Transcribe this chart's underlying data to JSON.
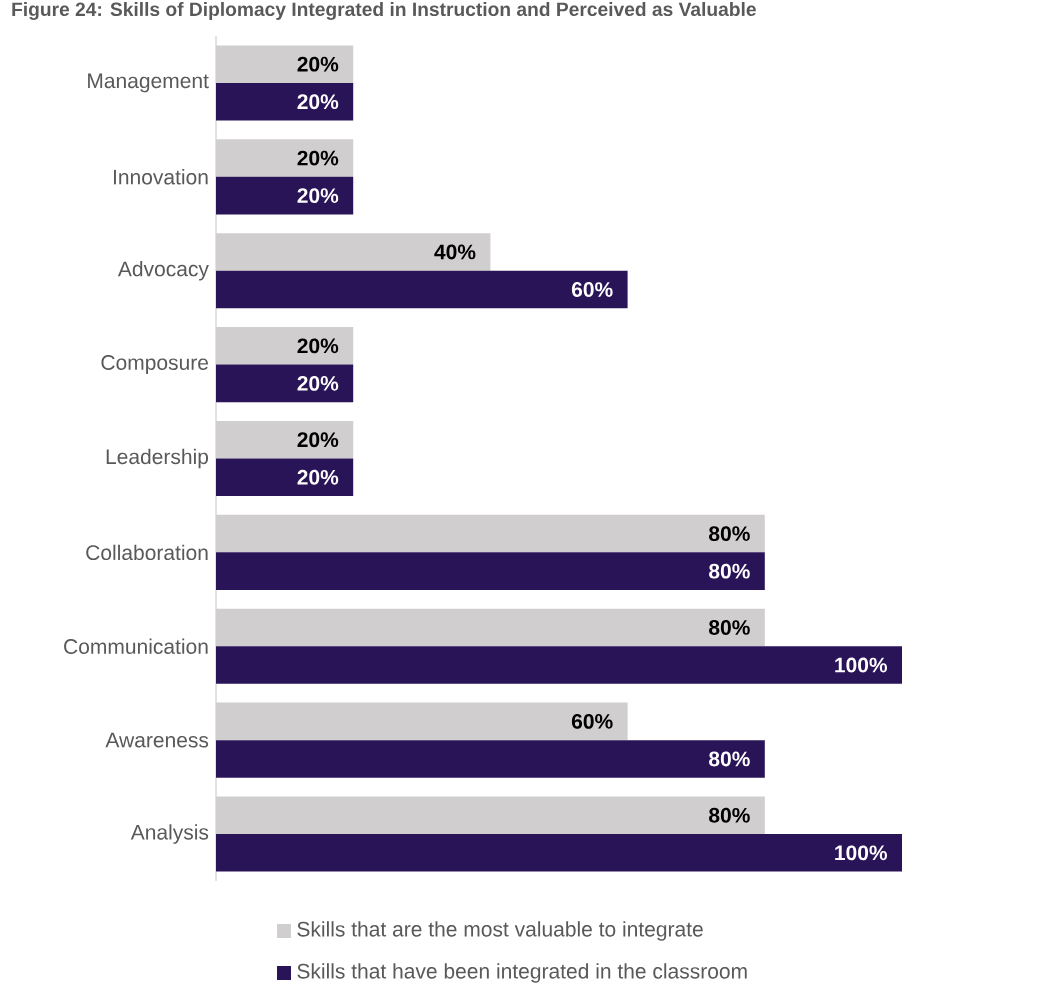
{
  "chart_data": {
    "type": "bar",
    "orientation": "horizontal",
    "title": "Figure 24: Skills of Diplomacy Integrated in Instruction and Perceived as Valuable",
    "categories": [
      "Management",
      "Innovation",
      "Advocacy",
      "Composure",
      "Leadership",
      "Collaboration",
      "Communication",
      "Awareness",
      "Analysis"
    ],
    "series": [
      {
        "name": "Skills that are the most valuable to integrate",
        "color": "#d0cece",
        "values": [
          20,
          20,
          40,
          20,
          20,
          80,
          80,
          60,
          80
        ],
        "value_labels": [
          "20%",
          "20%",
          "40%",
          "20%",
          "20%",
          "80%",
          "80%",
          "60%",
          "80%"
        ]
      },
      {
        "name": "Skills that have been integrated in the classroom",
        "color": "#2a1458",
        "values": [
          20,
          20,
          60,
          20,
          20,
          80,
          100,
          80,
          100
        ],
        "value_labels": [
          "20%",
          "20%",
          "60%",
          "20%",
          "20%",
          "80%",
          "100%",
          "80%",
          "100%"
        ]
      }
    ],
    "legend": "bottom"
  }
}
